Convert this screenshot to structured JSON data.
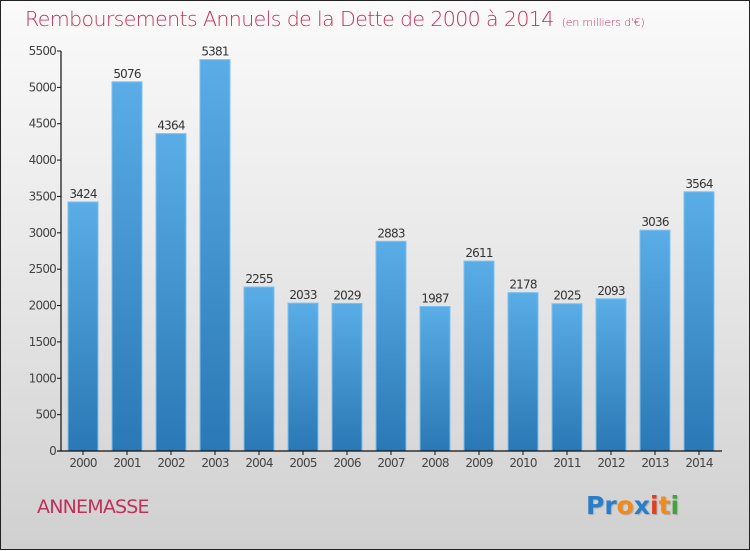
{
  "chart_data": {
    "type": "bar",
    "title": "Remboursements Annuels de la Dette de 2000 à 2014",
    "subtitle": "(en milliers d'€)",
    "xlabel": "",
    "ylabel": "",
    "categories": [
      "2000",
      "2001",
      "2002",
      "2003",
      "2004",
      "2005",
      "2006",
      "2007",
      "2008",
      "2009",
      "2010",
      "2011",
      "2012",
      "2013",
      "2014"
    ],
    "values": [
      3424,
      5076,
      4364,
      5381,
      2255,
      2033,
      2029,
      2883,
      1987,
      2611,
      2178,
      2025,
      2093,
      3036,
      3564
    ],
    "ylim": [
      0,
      5500
    ],
    "yticks": [
      0,
      500,
      1000,
      1500,
      2000,
      2500,
      3000,
      3500,
      4000,
      4500,
      5000,
      5500
    ],
    "grid": false,
    "legend": "none",
    "bar_color_top": "#5aade6",
    "bar_color_bottom": "#2a78b5"
  },
  "city": "ANNEMASSE",
  "logo": {
    "letters": [
      {
        "ch": "P",
        "color": "#2a7ec8"
      },
      {
        "ch": "r",
        "color": "#2a7ec8"
      },
      {
        "ch": "o",
        "color": "#f08a1c"
      },
      {
        "ch": "x",
        "color": "#2a7ec8"
      },
      {
        "ch": "i",
        "color": "#e04020"
      },
      {
        "ch": "t",
        "color": "#f08a1c"
      },
      {
        "ch": "i",
        "color": "#4aa040"
      }
    ]
  },
  "colors": {
    "title": "#c0305a",
    "axis": "#111111"
  }
}
